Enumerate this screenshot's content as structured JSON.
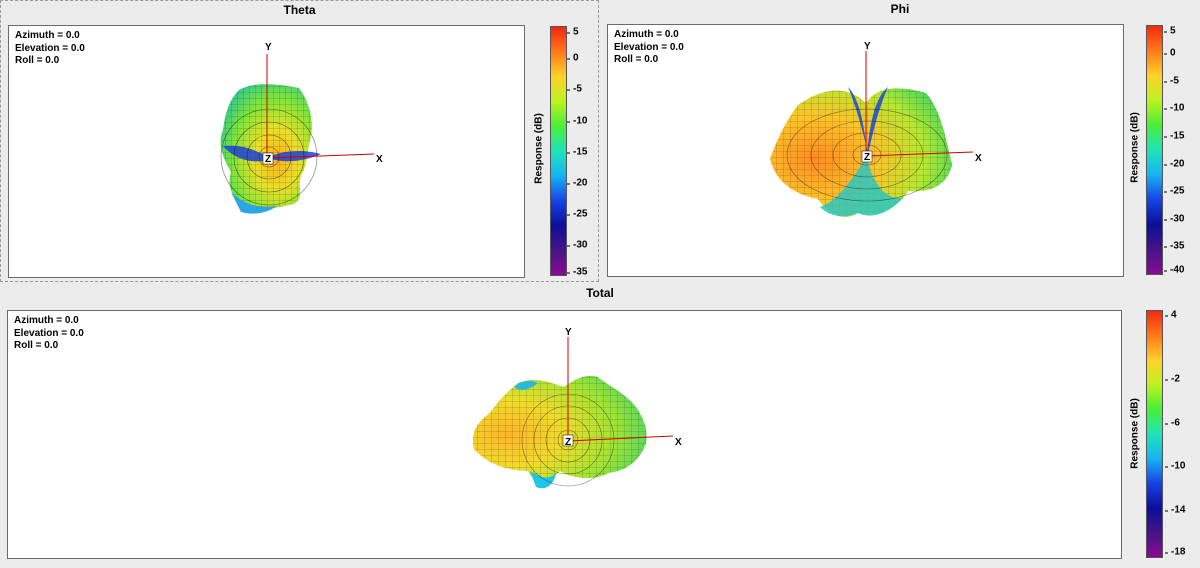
{
  "panels": {
    "theta": {
      "title": "Theta",
      "orientation": {
        "azimuth": "Azimuth = 0.0",
        "elevation": "Elevation = 0.0",
        "roll": "Roll = 0.0"
      },
      "axes": {
        "x": "X",
        "y": "Y",
        "z": "Z"
      },
      "colorbar": {
        "title": "Response  (dB)",
        "ticks": [
          "5",
          "0",
          "-5",
          "-10",
          "-15",
          "-20",
          "-25",
          "-30",
          "-35"
        ]
      }
    },
    "phi": {
      "title": "Phi",
      "orientation": {
        "azimuth": "Azimuth = 0.0",
        "elevation": "Elevation = 0.0",
        "roll": "Roll = 0.0"
      },
      "axes": {
        "x": "X",
        "y": "Y",
        "z": "Z"
      },
      "colorbar": {
        "title": "Response  (dB)",
        "ticks": [
          "5",
          "0",
          "-5",
          "-10",
          "-15",
          "-20",
          "-25",
          "-30",
          "-35",
          "-40"
        ]
      }
    },
    "total": {
      "title": "Total",
      "orientation": {
        "azimuth": "Azimuth = 0.0",
        "elevation": "Elevation = 0.0",
        "roll": "Roll = 0.0"
      },
      "axes": {
        "x": "X",
        "y": "Y",
        "z": "Z"
      },
      "colorbar": {
        "title": "Response  (dB)",
        "ticks": [
          "4",
          "-2",
          "-6",
          "-10",
          "-14",
          "-18"
        ]
      }
    }
  },
  "colors": {
    "hot": "#f52810",
    "warm": "#ffd12a",
    "mid": "#49ef38",
    "cool": "#17b4f2",
    "cold": "#1743e6",
    "min": "#8a0a93",
    "axis": "#d00000"
  }
}
